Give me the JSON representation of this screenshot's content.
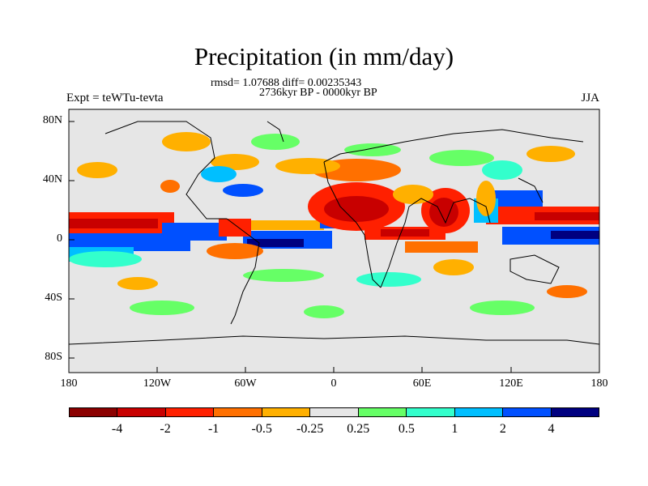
{
  "title": "Precipitation (in mm/day)",
  "stats": "rmsd= 1.07688 diff= 0.00235343",
  "period": "2736kyr BP - 0000kyr BP",
  "experiment": "Expt = teWTu-tevta",
  "season": "JJA",
  "lat_labels": [
    "80N",
    "40N",
    "0",
    "40S",
    "80S"
  ],
  "lon_labels": [
    "180",
    "120W",
    "60W",
    "0",
    "60E",
    "120E",
    "180"
  ],
  "legend": {
    "colors": [
      "#8b0000",
      "#c80000",
      "#ff2000",
      "#ff7000",
      "#ffb000",
      "#e6e6e6",
      "#66ff66",
      "#33ffcc",
      "#00bfff",
      "#0050ff",
      "#000080"
    ],
    "labels": [
      "-4",
      "-2",
      "-1",
      "-0.5",
      "-0.25",
      "0.25",
      "0.5",
      "1",
      "2",
      "4"
    ]
  }
}
